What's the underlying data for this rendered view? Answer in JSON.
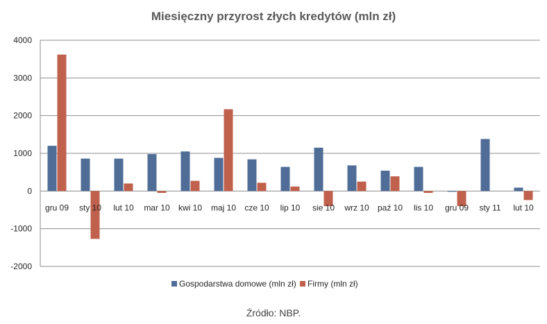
{
  "chart_data": {
    "type": "bar",
    "title": "Miesięczny przyrost złych kredytów (mln zł)",
    "source": "Źródło: NBP.",
    "categories": [
      "gru 09",
      "sty 10",
      "lut 10",
      "mar 10",
      "kwi 10",
      "maj 10",
      "cze 10",
      "lip 10",
      "sie 10",
      "wrz 10",
      "paź 10",
      "lis 10",
      "gru 09",
      "sty 11",
      "lut 10"
    ],
    "series": [
      {
        "name": "Gospodarstwa domowe (mln zł)",
        "color": "#4F6D97",
        "values": [
          1200,
          860,
          860,
          980,
          1050,
          880,
          840,
          640,
          1150,
          680,
          540,
          640,
          -20,
          1380,
          90
        ]
      },
      {
        "name": "Firmy (mln zł)",
        "color": "#C0614D",
        "values": [
          3620,
          -1270,
          200,
          -50,
          270,
          2170,
          220,
          120,
          -400,
          250,
          390,
          -50,
          -400,
          0,
          -240
        ]
      }
    ],
    "ylim": [
      -2000,
      4000
    ],
    "yticks": [
      "-2000",
      "-1000",
      "0",
      "1000",
      "2000",
      "3000",
      "4000"
    ],
    "grid": true,
    "legend": "bottom"
  }
}
